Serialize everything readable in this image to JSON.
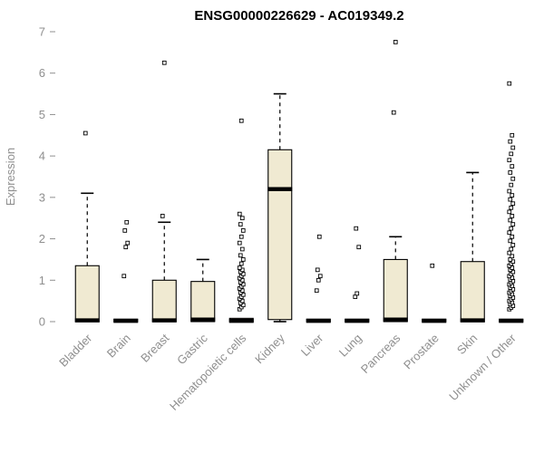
{
  "title": "ENSG00000226629 - AC019349.2",
  "chart_data": {
    "type": "boxplot",
    "title": "ENSG00000226629 - AC019349.2",
    "xlabel": "",
    "ylabel": "Expression",
    "ylim": [
      0,
      7
    ],
    "yticks": [
      0,
      1,
      2,
      3,
      4,
      5,
      6,
      7
    ],
    "grid": false,
    "legend": false,
    "box_fill": "#f0ead2",
    "box_stroke": "#000000",
    "axis_color": "#8f8f8f",
    "title_color": "#000000",
    "categories": [
      "Bladder",
      "Brain",
      "Breast",
      "Gastric",
      "Hematopoietic cells",
      "Kidney",
      "Liver",
      "Lung",
      "Pancreas",
      "Prostate",
      "Skin",
      "Unknown / Other"
    ],
    "boxes": [
      {
        "category": "Bladder",
        "whisker_low": 0,
        "q1": 0,
        "median": 0.03,
        "q3": 1.35,
        "whisker_high": 3.1,
        "outliers": [
          4.55
        ]
      },
      {
        "category": "Brain",
        "whisker_low": 0,
        "q1": 0,
        "median": 0.02,
        "q3": 0.06,
        "whisker_high": 0.06,
        "outliers": [
          1.1,
          1.8,
          1.9,
          2.2,
          2.4
        ]
      },
      {
        "category": "Breast",
        "whisker_low": 0,
        "q1": 0,
        "median": 0.03,
        "q3": 1.0,
        "whisker_high": 2.4,
        "outliers": [
          2.55,
          6.25
        ]
      },
      {
        "category": "Gastric",
        "whisker_low": 0,
        "q1": 0,
        "median": 0.05,
        "q3": 0.97,
        "whisker_high": 1.5,
        "outliers": []
      },
      {
        "category": "Hematopoietic cells",
        "whisker_low": 0,
        "q1": 0,
        "median": 0.02,
        "q3": 0.08,
        "whisker_high": 0.08,
        "outliers": [
          0.3,
          0.35,
          0.4,
          0.45,
          0.5,
          0.55,
          0.6,
          0.65,
          0.7,
          0.75,
          0.8,
          0.85,
          0.9,
          0.95,
          1.0,
          1.05,
          1.1,
          1.15,
          1.2,
          1.25,
          1.3,
          1.4,
          1.5,
          1.6,
          1.75,
          1.9,
          2.05,
          2.2,
          2.35,
          2.5,
          2.6,
          4.85
        ]
      },
      {
        "category": "Kidney",
        "whisker_low": 0,
        "q1": 0.05,
        "median": 3.2,
        "q3": 4.15,
        "whisker_high": 5.5,
        "outliers": []
      },
      {
        "category": "Liver",
        "whisker_low": 0,
        "q1": 0,
        "median": 0.02,
        "q3": 0.06,
        "whisker_high": 0.06,
        "outliers": [
          0.75,
          1.0,
          1.1,
          1.25,
          2.05
        ]
      },
      {
        "category": "Lung",
        "whisker_low": 0,
        "q1": 0,
        "median": 0.02,
        "q3": 0.06,
        "whisker_high": 0.06,
        "outliers": [
          0.6,
          0.68,
          1.8,
          2.25
        ]
      },
      {
        "category": "Pancreas",
        "whisker_low": 0,
        "q1": 0,
        "median": 0.05,
        "q3": 1.5,
        "whisker_high": 2.05,
        "outliers": [
          5.05,
          6.75
        ]
      },
      {
        "category": "Prostate",
        "whisker_low": 0,
        "q1": 0,
        "median": 0.02,
        "q3": 0.06,
        "whisker_high": 0.06,
        "outliers": [
          1.35
        ]
      },
      {
        "category": "Skin",
        "whisker_low": 0,
        "q1": 0,
        "median": 0.03,
        "q3": 1.45,
        "whisker_high": 3.6,
        "outliers": []
      },
      {
        "category": "Unknown / Other",
        "whisker_low": 0,
        "q1": 0,
        "median": 0.02,
        "q3": 0.06,
        "whisker_high": 0.06,
        "outliers": [
          0.3,
          0.34,
          0.38,
          0.42,
          0.46,
          0.5,
          0.54,
          0.58,
          0.62,
          0.66,
          0.7,
          0.74,
          0.78,
          0.82,
          0.86,
          0.9,
          0.94,
          0.98,
          1.02,
          1.06,
          1.1,
          1.15,
          1.2,
          1.25,
          1.3,
          1.35,
          1.4,
          1.45,
          1.5,
          1.58,
          1.66,
          1.75,
          1.85,
          1.95,
          2.05,
          2.15,
          2.25,
          2.35,
          2.45,
          2.55,
          2.65,
          2.75,
          2.85,
          2.95,
          3.05,
          3.15,
          3.3,
          3.45,
          3.6,
          3.75,
          3.9,
          4.05,
          4.2,
          4.35,
          4.5,
          5.75
        ]
      }
    ]
  }
}
